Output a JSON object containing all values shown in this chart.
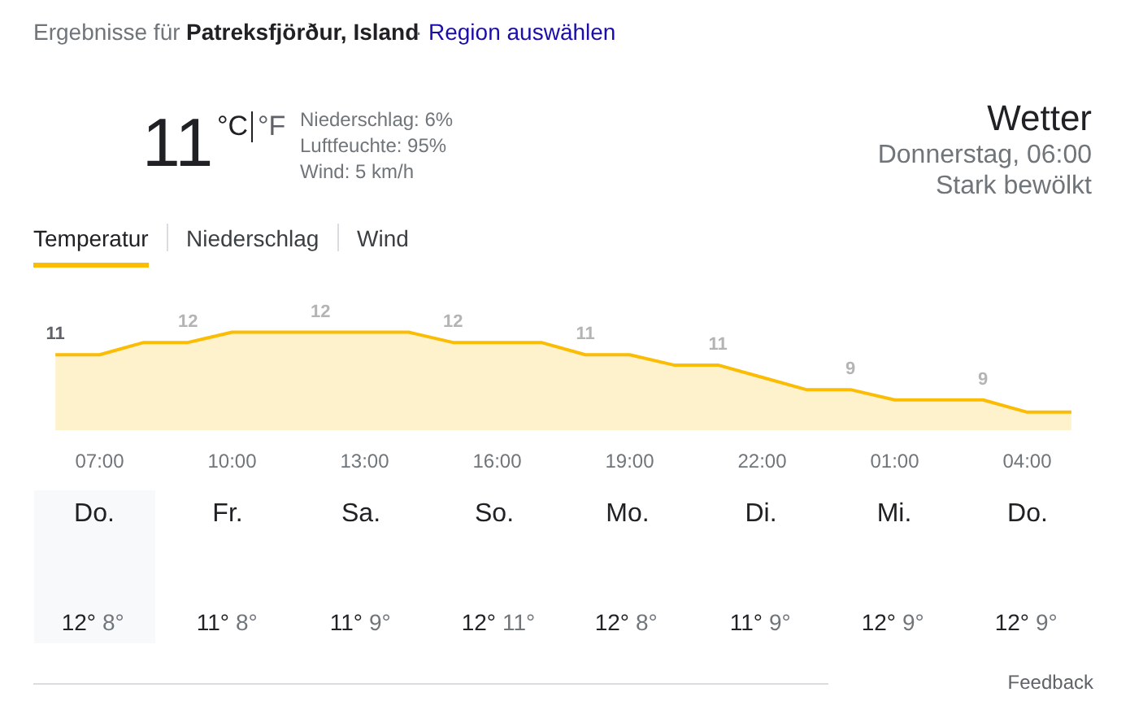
{
  "chart_data": [
    {
      "type": "other",
      "annotations": [
        "Ergebnisse für",
        "Patreksfjörður, Island",
        "·",
        "Region auswählen",
        "11",
        "°C",
        "°F",
        "Niederschlag: 6%",
        "Luftfeuchte: 95%",
        "Wind: 5 km/h",
        "Wetter",
        "Donnerstag, 06:00",
        "Stark bewölkt",
        "Temperatur",
        "Niederschlag",
        "Wind"
      ]
    },
    {
      "type": "area",
      "categories": [
        null,
        "07:00",
        null,
        null,
        "10:00",
        null,
        null,
        "13:00",
        null,
        null,
        "16:00",
        null,
        null,
        "19:00",
        null,
        null,
        "22:00",
        null,
        null,
        "01:00",
        null,
        null,
        "04:00",
        null
      ],
      "values": [
        11.1,
        11.1,
        11.7,
        11.7,
        12.2,
        12.2,
        12.2,
        12.2,
        12.2,
        11.7,
        11.7,
        11.7,
        11.1,
        11.1,
        10.6,
        10.6,
        10.0,
        9.4,
        9.4,
        8.9,
        8.9,
        8.9,
        8.3,
        8.3
      ],
      "value_labels": [
        "11",
        null,
        null,
        "12",
        null,
        null,
        "12",
        null,
        null,
        "12",
        null,
        null,
        "11",
        null,
        null,
        "11",
        null,
        null,
        "9",
        null,
        null,
        "9",
        null,
        null
      ],
      "color": "#fbbc04"
    },
    {
      "type": "other",
      "categories": [
        "Do.",
        "Fr.",
        "Sa.",
        "So.",
        "Mo.",
        "Di.",
        "Mi.",
        "Do."
      ],
      "annotations": [
        "12°",
        "8°",
        "11°",
        "8°",
        "11°",
        "9°",
        "12°",
        "11°",
        "12°",
        "8°",
        "11°",
        "9°",
        "12°",
        "9°",
        "12°",
        "9°",
        "Feedback"
      ]
    }
  ]
}
